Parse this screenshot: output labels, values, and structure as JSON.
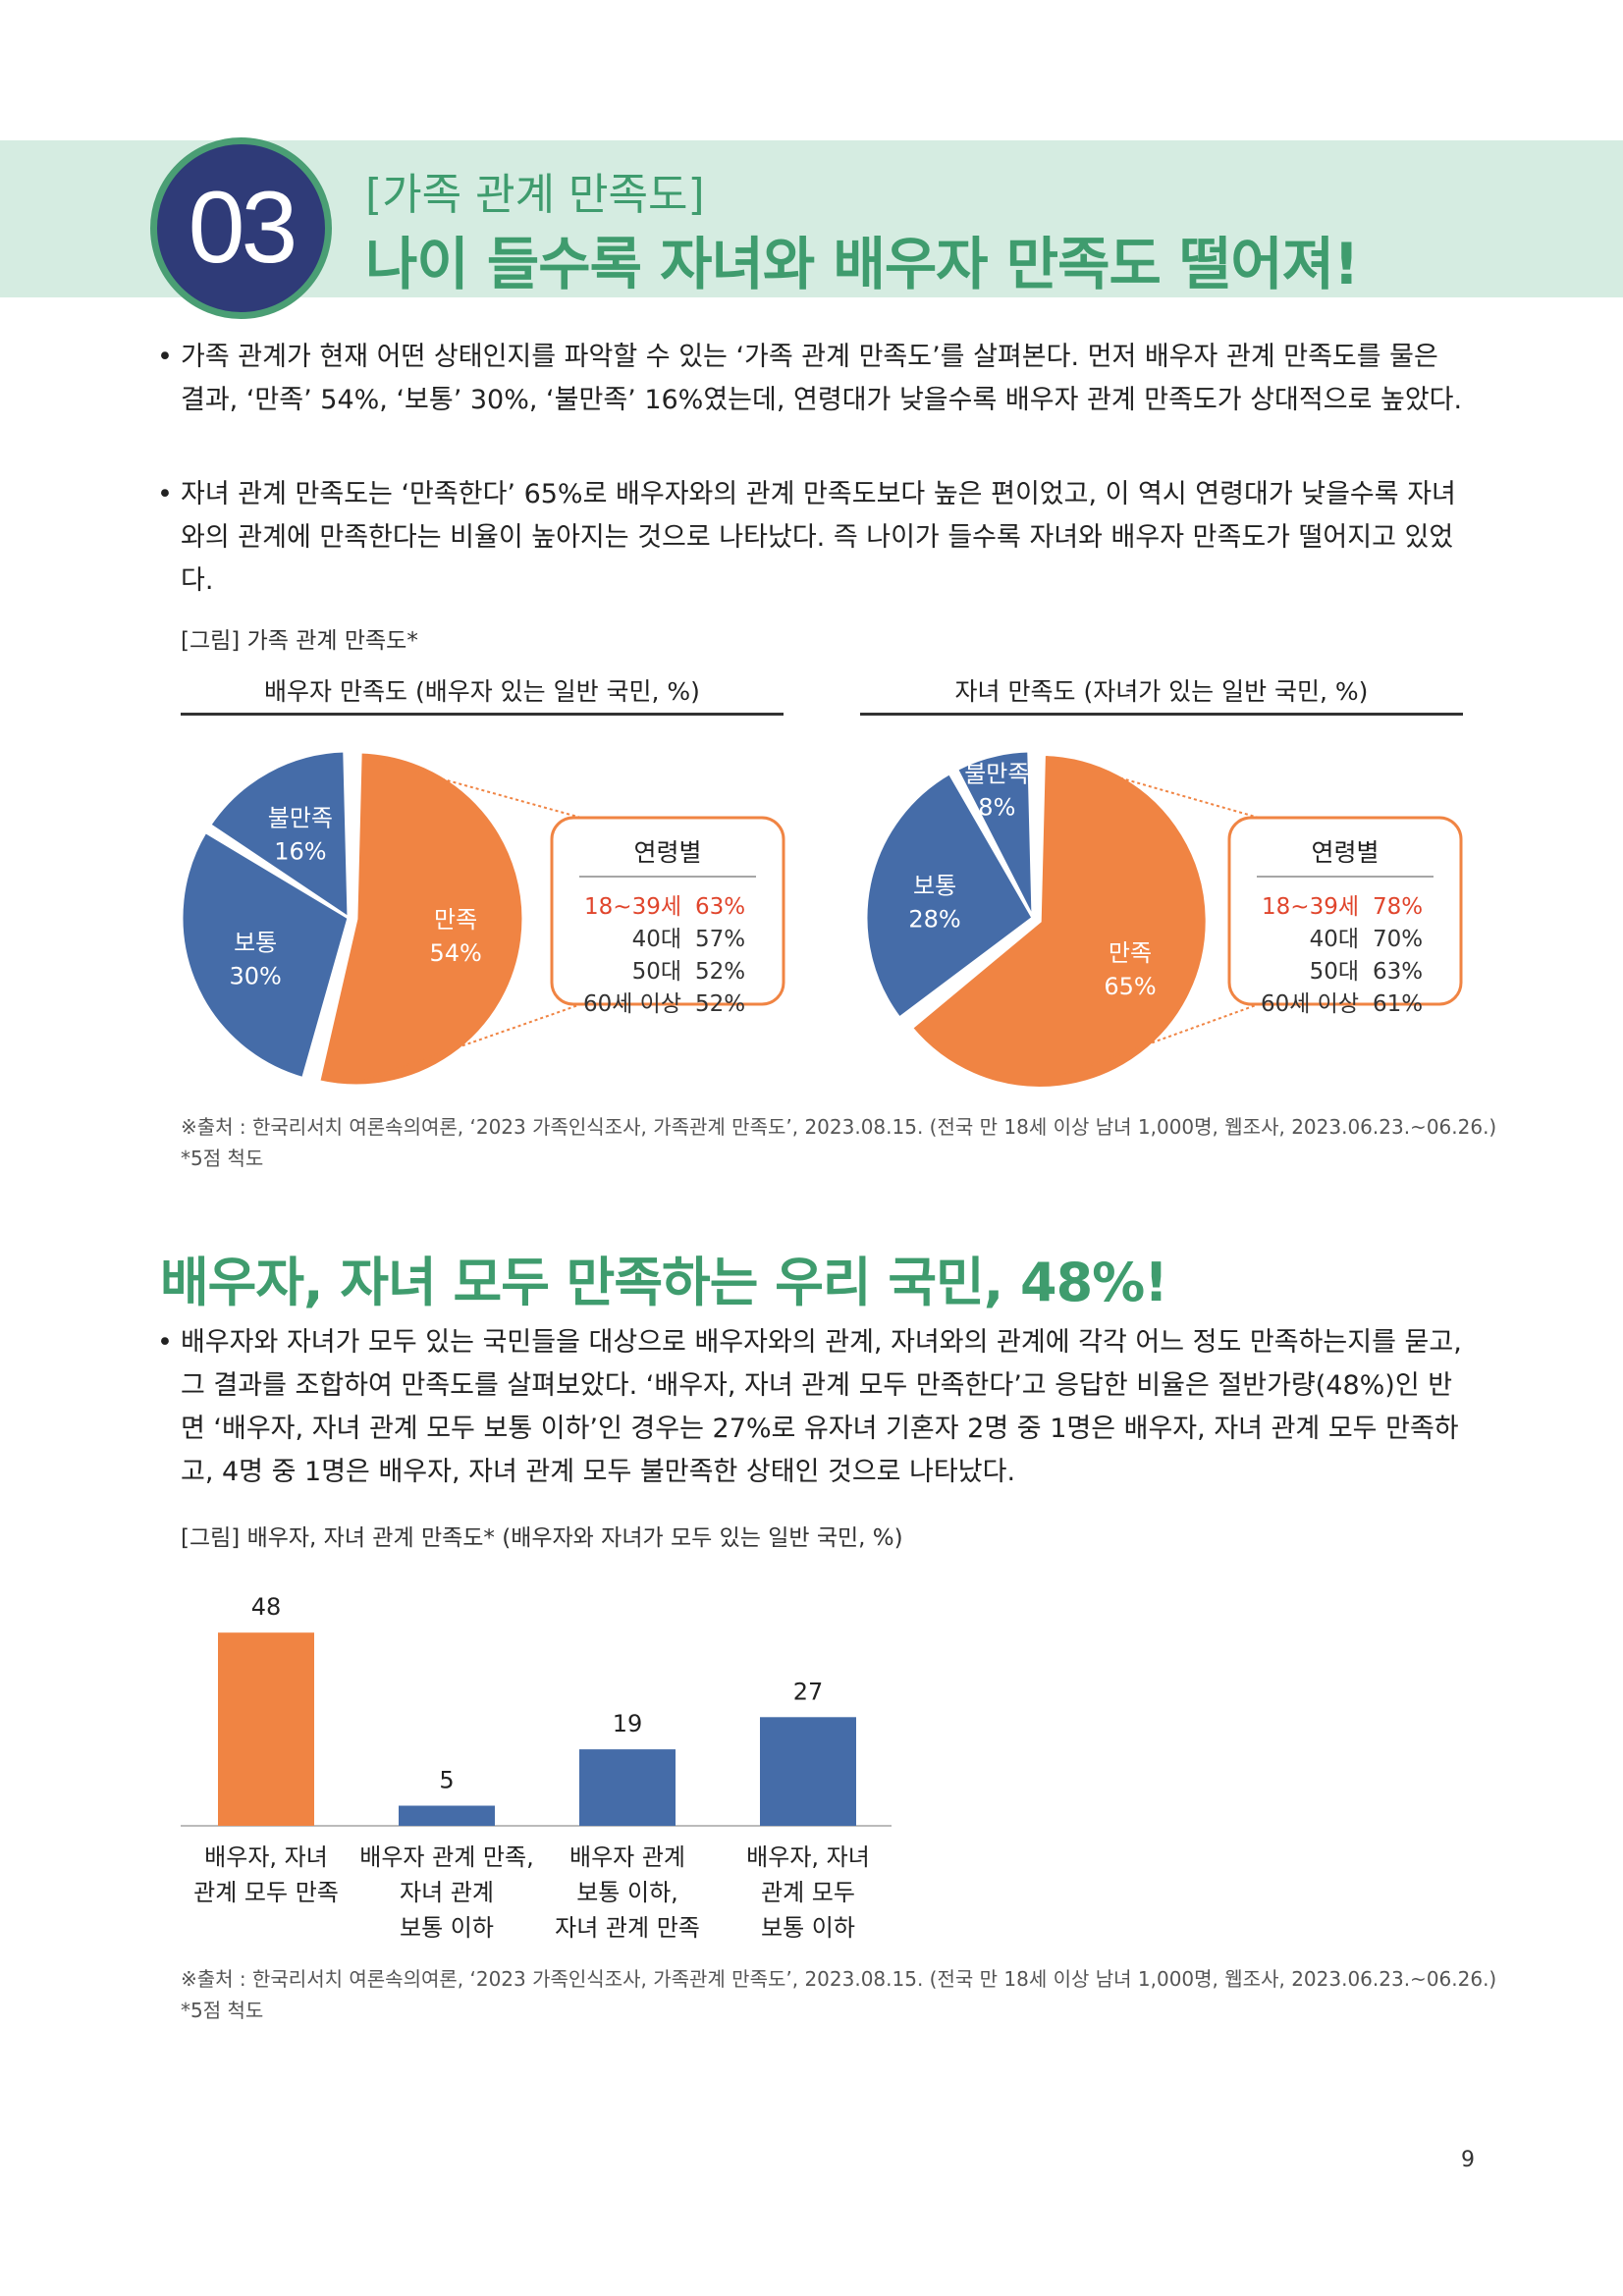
{
  "section_number": "03",
  "kicker": "[가족 관계 만족도]",
  "headline": "나이 들수록 자녀와 배우자 만족도 떨어져!",
  "bullets_top": [
    "가족 관계가 현재 어떤 상태인지를 파악할 수 있는 ‘가족 관계 만족도’를 살펴본다. 먼저 배우자 관계 만족도를 물은 결과, ‘만족’ 54%, ‘보통’ 30%, ‘불만족’ 16%였는데, 연령대가 낮을수록 배우자 관계 만족도가 상대적으로 높았다.",
    "자녀 관계 만족도는 ‘만족한다’ 65%로 배우자와의 관계 만족도보다 높은 편이었고, 이 역시 연령대가 낮을수록 자녀와의 관계에 만족한다는 비율이 높아지는 것으로 나타났다. 즉 나이가 들수록 자녀와 배우자 만족도가 떨어지고 있었다."
  ],
  "figure1_caption": "[그림] 가족 관계 만족도*",
  "pie_spouse": {
    "subtitle": "배우자 만족도 (배우자 있는 일반 국민, %)",
    "slices": [
      {
        "label": "만족",
        "value": 54,
        "value_text": "54%",
        "color": "#f08443"
      },
      {
        "label": "보통",
        "value": 30,
        "value_text": "30%",
        "color": "#456ca8"
      },
      {
        "label": "불만족",
        "value": 16,
        "value_text": "16%",
        "color": "#456ca8"
      }
    ],
    "age_box": {
      "title": "연령별",
      "rows": [
        {
          "age": "18~39세",
          "value": "63%",
          "highlight": true
        },
        {
          "age": "40대",
          "value": "57%",
          "highlight": false
        },
        {
          "age": "50대",
          "value": "52%",
          "highlight": false
        },
        {
          "age": "60세 이상",
          "value": "52%",
          "highlight": false
        }
      ]
    }
  },
  "pie_children": {
    "subtitle": "자녀 만족도 (자녀가 있는 일반 국민, %)",
    "slices": [
      {
        "label": "만족",
        "value": 65,
        "value_text": "65%",
        "color": "#f08443"
      },
      {
        "label": "보통",
        "value": 28,
        "value_text": "28%",
        "color": "#456ca8"
      },
      {
        "label": "불만족",
        "value": 8,
        "value_text": "8%",
        "color": "#456ca8"
      }
    ],
    "age_box": {
      "title": "연령별",
      "rows": [
        {
          "age": "18~39세",
          "value": "78%",
          "highlight": true
        },
        {
          "age": "40대",
          "value": "70%",
          "highlight": false
        },
        {
          "age": "50대",
          "value": "63%",
          "highlight": false
        },
        {
          "age": "60세 이상",
          "value": "61%",
          "highlight": false
        }
      ]
    }
  },
  "source1_line1": "※출처 : 한국리서치 여론속의여론, ‘2023 가족인식조사, 가족관계 만족도’, 2023.08.15. (전국 만 18세 이상 남녀 1,000명, 웹조사, 2023.06.23.~06.26.)",
  "source1_line2": "*5점 척도",
  "section2_title": "배우자, 자녀 모두 만족하는 우리 국민, 48%!",
  "bullet_section2": "배우자와 자녀가 모두 있는 국민들을 대상으로 배우자와의 관계, 자녀와의 관계에 각각 어느 정도 만족하는지를 묻고, 그 결과를 조합하여 만족도를 살펴보았다. ‘배우자, 자녀 관계 모두 만족한다’고 응답한 비율은 절반가량(48%)인 반면 ‘배우자, 자녀 관계 모두 보통 이하’인 경우는 27%로 유자녀 기혼자 2명 중 1명은 배우자, 자녀 관계 모두 만족하고, 4명 중 1명은 배우자, 자녀 관계 모두 불만족한 상태인 것으로 나타났다.",
  "figure2_caption": "[그림] 배우자, 자녀 관계 만족도* (배우자와 자녀가 모두 있는 일반 국민, %)",
  "chart_data": [
    {
      "type": "pie",
      "title": "배우자 만족도 (배우자 있는 일반 국민, %)",
      "labels": [
        "만족",
        "보통",
        "불만족"
      ],
      "values": [
        54,
        30,
        16
      ],
      "breakdown": {
        "title": "연령별",
        "categories": [
          "18~39세",
          "40대",
          "50대",
          "60세 이상"
        ],
        "values": [
          63,
          57,
          52,
          52
        ]
      }
    },
    {
      "type": "pie",
      "title": "자녀 만족도 (자녀가 있는 일반 국민, %)",
      "labels": [
        "만족",
        "보통",
        "불만족"
      ],
      "values": [
        65,
        28,
        8
      ],
      "breakdown": {
        "title": "연령별",
        "categories": [
          "18~39세",
          "40대",
          "50대",
          "60세 이상"
        ],
        "values": [
          78,
          70,
          63,
          61
        ]
      }
    },
    {
      "type": "bar",
      "title": "[그림] 배우자, 자녀 관계 만족도* (배우자와 자녀가 모두 있는 일반 국민, %)",
      "categories": [
        [
          "배우자, 자녀",
          "관계 모두 만족"
        ],
        [
          "배우자 관계 만족,",
          "자녀 관계",
          "보통 이하"
        ],
        [
          "배우자 관계",
          "보통 이하,",
          "자녀 관계 만족"
        ],
        [
          "배우자, 자녀",
          "관계 모두",
          "보통 이하"
        ]
      ],
      "values": [
        48,
        5,
        19,
        27
      ],
      "colors": [
        "#f08443",
        "#456ca8",
        "#456ca8",
        "#456ca8"
      ],
      "ylim": [
        0,
        50
      ]
    }
  ],
  "source2_line1": "※출처 : 한국리서치 여론속의여론, ‘2023 가족인식조사, 가족관계 만족도’, 2023.08.15. (전국 만 18세 이상 남녀 1,000명, 웹조사, 2023.06.23.~06.26.)",
  "source2_line2": "*5점 척도",
  "page_number": "9"
}
